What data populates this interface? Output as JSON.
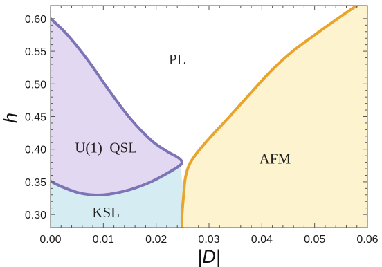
{
  "chart_data": {
    "type": "area",
    "title": "",
    "xlabel": "|D|",
    "ylabel": "h",
    "xlim": [
      0.0,
      0.06
    ],
    "ylim": [
      0.28,
      0.62
    ],
    "x_ticks": [
      0.0,
      0.01,
      0.02,
      0.03,
      0.04,
      0.05,
      0.06
    ],
    "x_tick_labels": [
      "0.00",
      "0.01",
      "0.02",
      "0.03",
      "0.04",
      "0.05",
      "0.06"
    ],
    "y_ticks": [
      0.3,
      0.35,
      0.4,
      0.45,
      0.5,
      0.55,
      0.6
    ],
    "y_tick_labels": [
      "0.30",
      "0.35",
      "0.40",
      "0.45",
      "0.50",
      "0.55",
      "0.60"
    ],
    "grid": false,
    "regions": [
      {
        "label": "PL",
        "at": [
          0.024,
          0.535
        ],
        "color": "#ffffff"
      },
      {
        "label": "U(1)  QSL",
        "at": [
          0.0105,
          0.4
        ],
        "color": "#e3d8f1"
      },
      {
        "label": "KSL",
        "at": [
          0.0105,
          0.301
        ],
        "color": "#d6ecf3"
      },
      {
        "label": "AFM",
        "at": [
          0.0425,
          0.383
        ],
        "color": "#fdf3cf"
      }
    ],
    "boundaries": [
      {
        "name": "U(1) QSL upper boundary",
        "color": "#7c74b6",
        "x": [
          0.0,
          0.003,
          0.007,
          0.011,
          0.015,
          0.019,
          0.022,
          0.024,
          0.0248,
          0.0246
        ],
        "y": [
          0.6,
          0.577,
          0.537,
          0.491,
          0.448,
          0.414,
          0.397,
          0.388,
          0.382,
          0.376
        ]
      },
      {
        "name": "U(1) QSL lower boundary",
        "color": "#7c74b6",
        "x": [
          0.0246,
          0.0225,
          0.019,
          0.015,
          0.011,
          0.008,
          0.005,
          0.002,
          0.0
        ],
        "y": [
          0.376,
          0.365,
          0.35,
          0.338,
          0.331,
          0.33,
          0.334,
          0.343,
          0.351
        ]
      },
      {
        "name": "AFM boundary",
        "color": "#e8a42c",
        "x": [
          0.0249,
          0.0249,
          0.0252,
          0.0255,
          0.0262,
          0.0275,
          0.03,
          0.034,
          0.038,
          0.042,
          0.046,
          0.05,
          0.054,
          0.058,
          0.06
        ],
        "y": [
          0.28,
          0.3,
          0.33,
          0.355,
          0.375,
          0.392,
          0.416,
          0.451,
          0.487,
          0.522,
          0.551,
          0.575,
          0.598,
          0.62,
          0.628
        ]
      }
    ]
  }
}
